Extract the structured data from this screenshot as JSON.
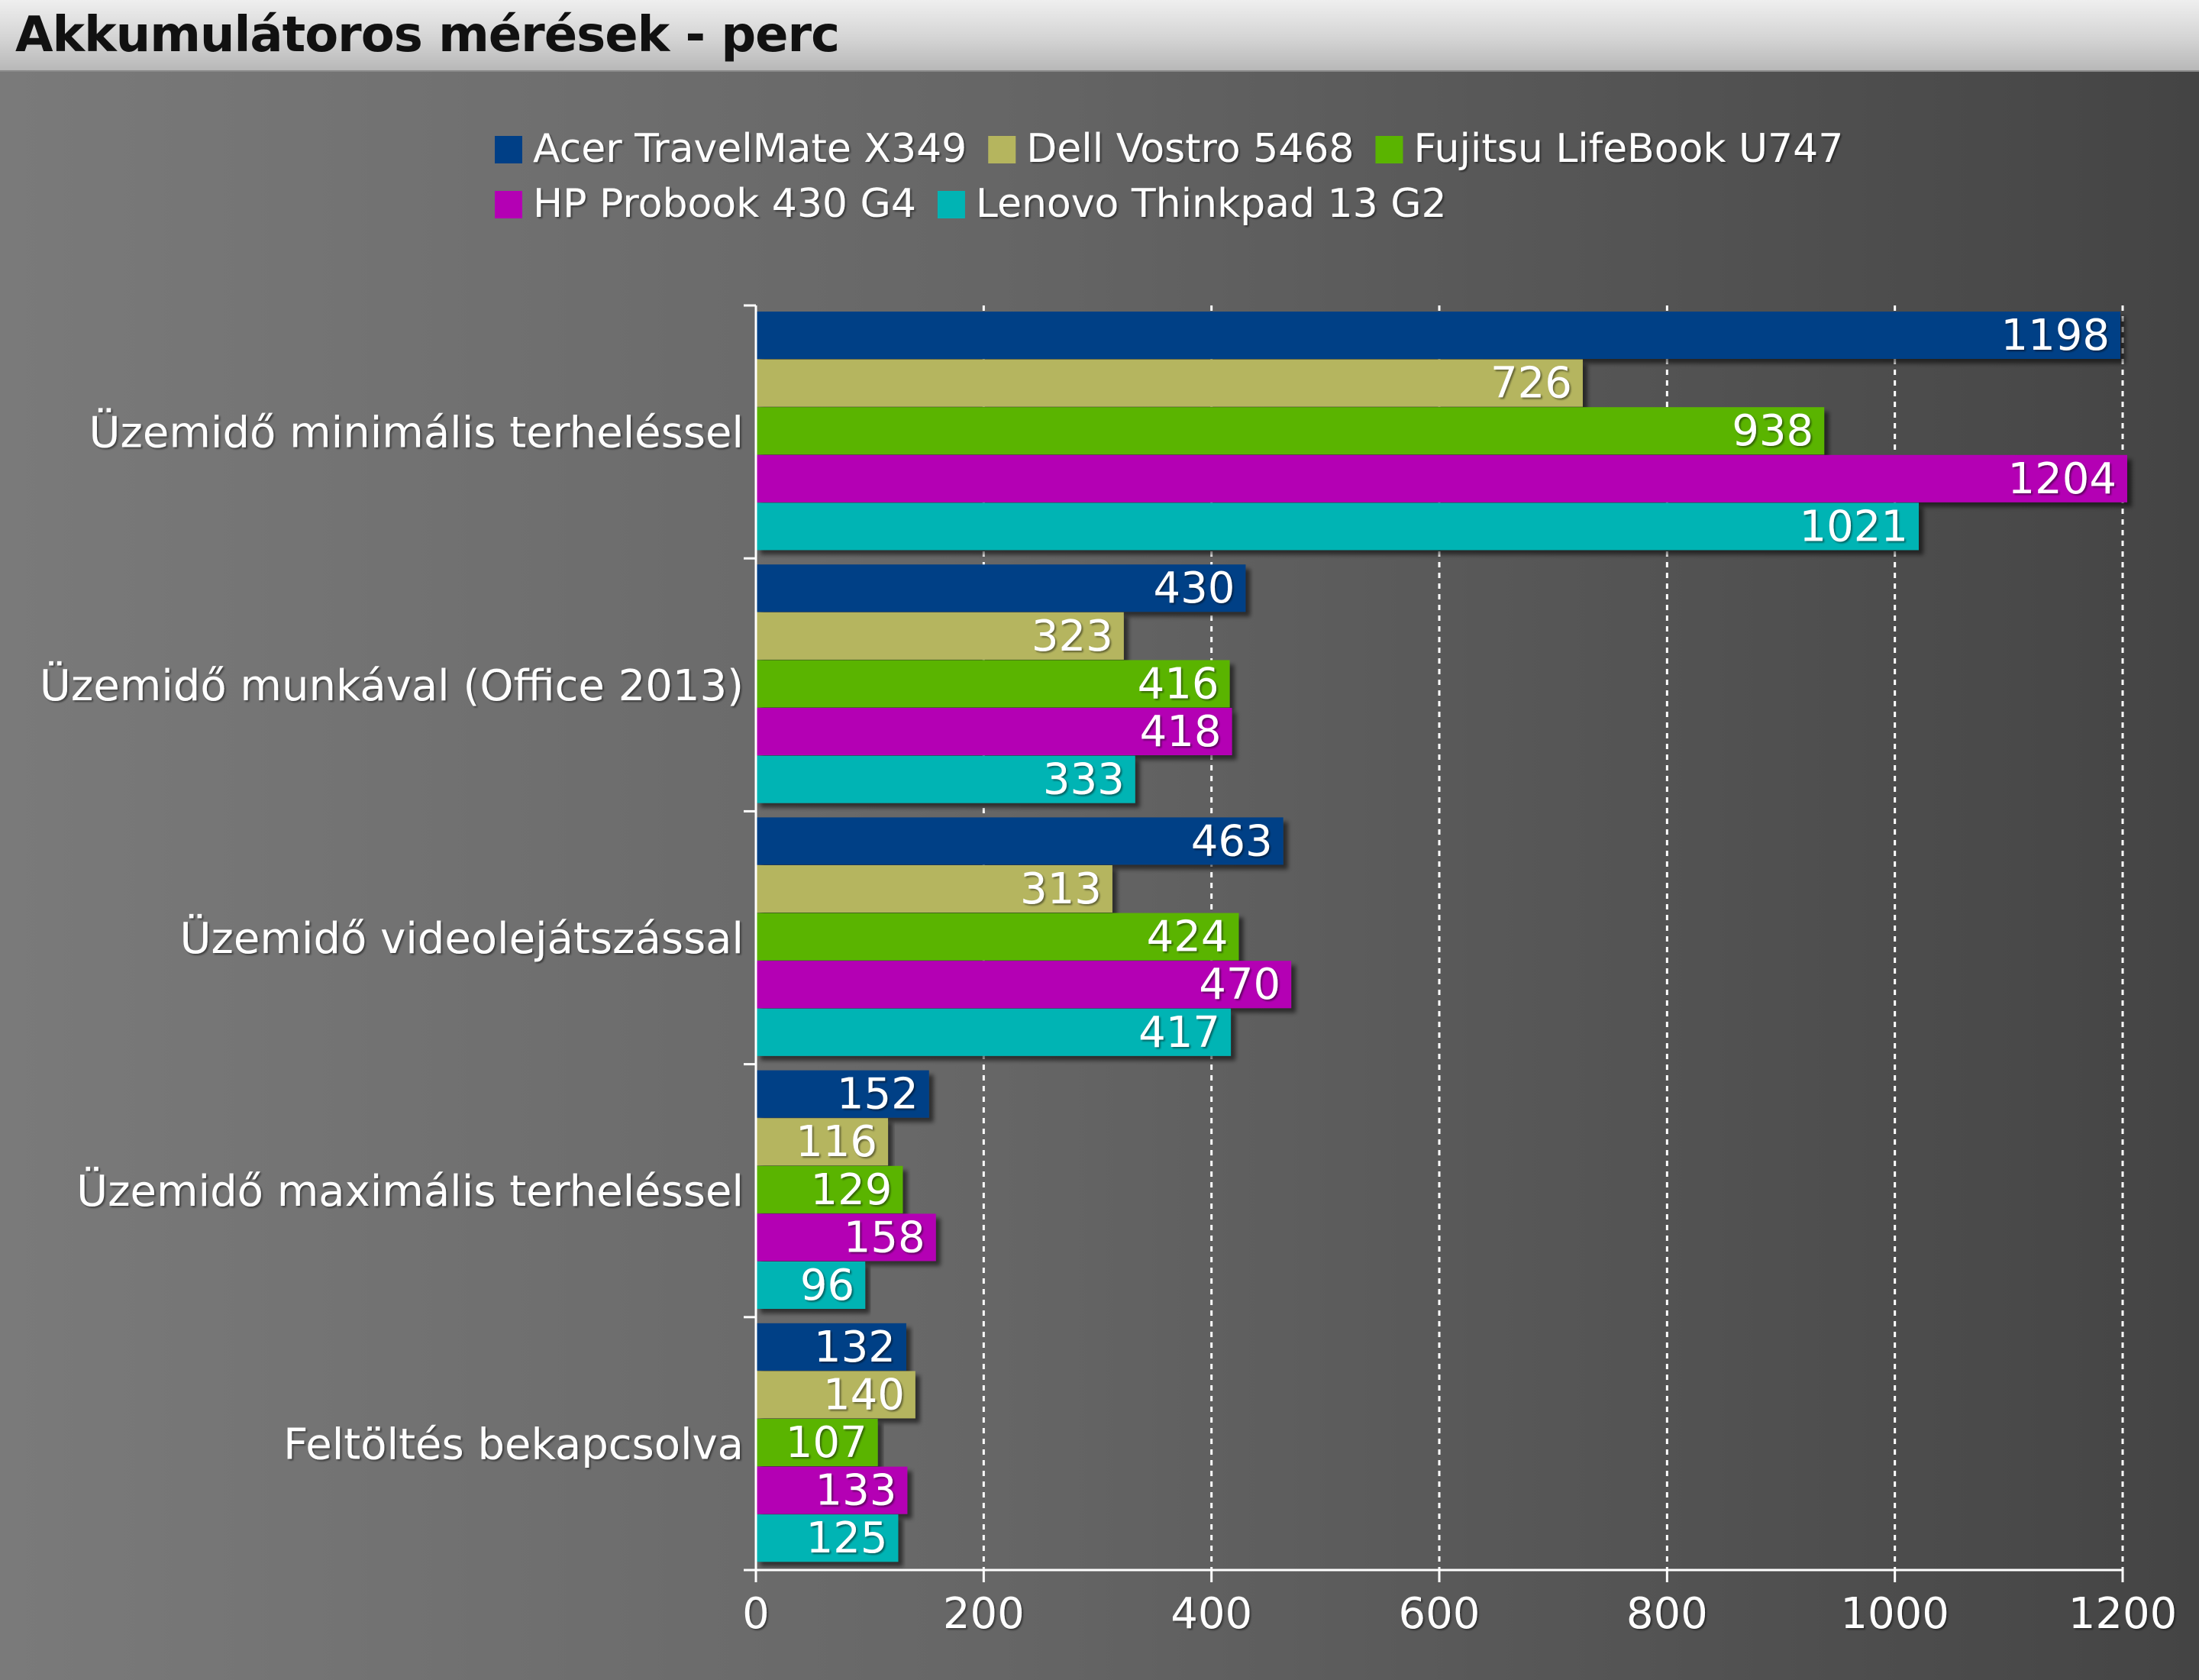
{
  "title": "Akkumulátoros mérések - perc",
  "chart_data": {
    "type": "bar",
    "orientation": "horizontal",
    "title": "Akkumulátoros mérések - perc",
    "categories": [
      "Üzemidő minimális terheléssel",
      "Üzemidő munkával (Office 2013)",
      "Üzemidő videolejátszással",
      "Üzemidő maximális terheléssel",
      "Feltöltés bekapcsolva"
    ],
    "series": [
      {
        "name": "Acer TravelMate X349",
        "color": "#003f86",
        "values": [
          1198,
          430,
          463,
          152,
          132
        ]
      },
      {
        "name": "Dell Vostro 5468",
        "color": "#b5b55e",
        "values": [
          726,
          323,
          313,
          116,
          140
        ]
      },
      {
        "name": "Fujitsu LifeBook U747",
        "color": "#5ab400",
        "values": [
          938,
          416,
          424,
          129,
          107
        ]
      },
      {
        "name": "HP Probook 430 G4",
        "color": "#b400b4",
        "values": [
          1204,
          418,
          470,
          158,
          133
        ]
      },
      {
        "name": "Lenovo Thinkpad 13 G2",
        "color": "#00b4b4",
        "values": [
          1021,
          333,
          417,
          96,
          125
        ]
      }
    ],
    "xlim": [
      0,
      1200
    ],
    "xticks": [
      0,
      200,
      400,
      600,
      800,
      1000,
      1200
    ],
    "grid": "vertical dashed",
    "legend_position": "top"
  }
}
